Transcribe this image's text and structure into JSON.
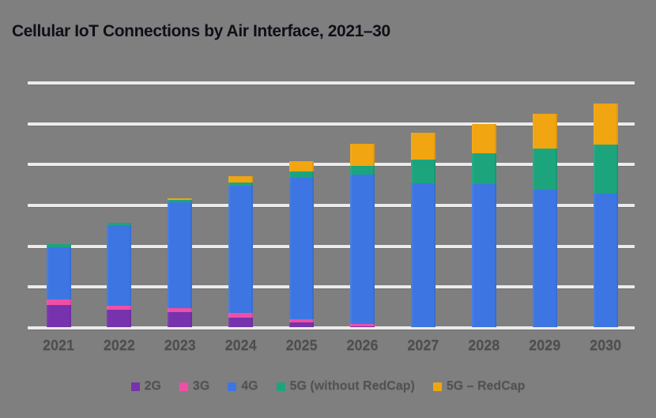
{
  "title": "Cellular IoT Connections by Air Interface, 2021–30",
  "colors": {
    "background": "#7f7f7f",
    "title_text": "#0f0f18",
    "gridline": "#ebebeb",
    "axis_text": "#4e4e4e",
    "legend_text": "#525252"
  },
  "chart_data": {
    "type": "bar",
    "stacked": true,
    "title": "Cellular IoT Connections by Air Interface, 2021–30",
    "categories": [
      "2021",
      "2022",
      "2023",
      "2024",
      "2025",
      "2026",
      "2027",
      "2028",
      "2029",
      "2030"
    ],
    "series": [
      {
        "name": "2G",
        "color": "#7732ad",
        "values": [
          0.55,
          0.42,
          0.37,
          0.24,
          0.12,
          0.02,
          0,
          0,
          0,
          0
        ]
      },
      {
        "name": "3G",
        "color": "#ef4fa6",
        "values": [
          0.13,
          0.1,
          0.1,
          0.1,
          0.08,
          0.05,
          0,
          0,
          0,
          0
        ]
      },
      {
        "name": "4G",
        "color": "#3d76e3",
        "values": [
          1.28,
          1.97,
          2.58,
          3.12,
          3.45,
          3.66,
          3.53,
          3.5,
          3.37,
          3.28
        ]
      },
      {
        "name": "5G (without RedCap)",
        "color": "#1ca57d",
        "values": [
          0.07,
          0.07,
          0.06,
          0.08,
          0.16,
          0.21,
          0.58,
          0.75,
          1.01,
          1.2
        ]
      },
      {
        "name": "5G – RedCap",
        "color": "#f0a511",
        "values": [
          0,
          0,
          0.05,
          0.15,
          0.26,
          0.55,
          0.65,
          0.73,
          0.85,
          0.99
        ]
      }
    ],
    "totals_estimated": [
      2.03,
      2.56,
      3.16,
      3.69,
      4.07,
      4.49,
      4.76,
      4.98,
      5.23,
      5.47
    ],
    "xlabel": "",
    "ylabel": "",
    "y_axis_tick_labels_visible": false,
    "ylim": [
      0,
      6
    ],
    "gridline_interval": 1,
    "grid": "horizontal only",
    "legend_position": "bottom",
    "note": "y-axis is unlabeled in the image; values estimated in gridline units (one unit per gridline gap)"
  }
}
